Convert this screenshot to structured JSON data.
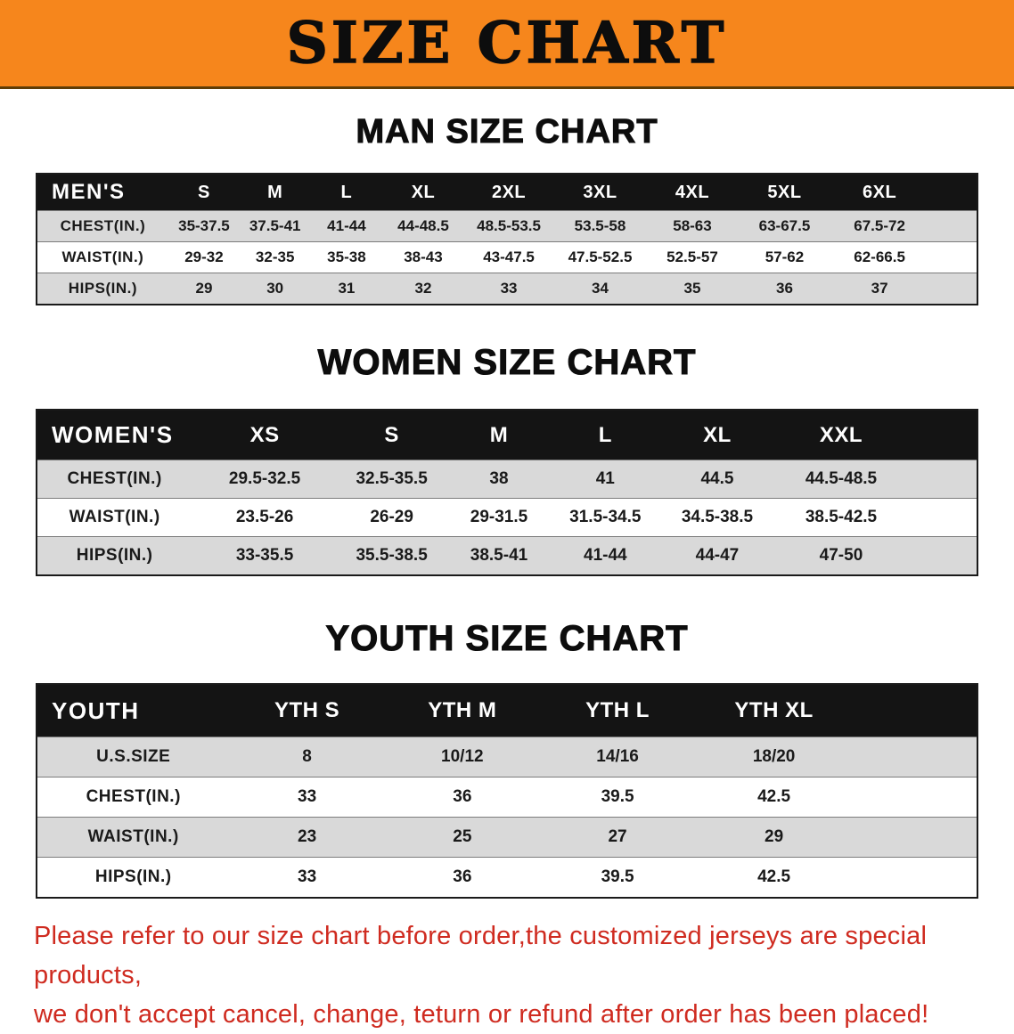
{
  "banner": {
    "title": "SIZE CHART"
  },
  "colors": {
    "banner_bg": "#F6861C",
    "header_bar_bg": "#141414",
    "row_gray": "#D9D9D9",
    "note_red": "#CF2B20"
  },
  "sections": [
    {
      "heading": "MAN SIZE CHART",
      "table": {
        "header": [
          "MEN'S",
          "S",
          "M",
          "L",
          "XL",
          "2XL",
          "3XL",
          "4XL",
          "5XL",
          "6XL"
        ],
        "rows": [
          [
            "CHEST(IN.)",
            "35-37.5",
            "37.5-41",
            "41-44",
            "44-48.5",
            "48.5-53.5",
            "53.5-58",
            "58-63",
            "63-67.5",
            "67.5-72"
          ],
          [
            "WAIST(IN.)",
            "29-32",
            "32-35",
            "35-38",
            "38-43",
            "43-47.5",
            "47.5-52.5",
            "52.5-57",
            "57-62",
            "62-66.5"
          ],
          [
            "HIPS(IN.)",
            "29",
            "30",
            "31",
            "32",
            "33",
            "34",
            "35",
            "36",
            "37"
          ]
        ]
      }
    },
    {
      "heading": "WOMEN SIZE CHART",
      "table": {
        "header": [
          "WOMEN'S",
          "XS",
          "S",
          "M",
          "L",
          "XL",
          "XXL"
        ],
        "rows": [
          [
            "CHEST(IN.)",
            "29.5-32.5",
            "32.5-35.5",
            "38",
            "41",
            "44.5",
            "44.5-48.5"
          ],
          [
            "WAIST(IN.)",
            "23.5-26",
            "26-29",
            "29-31.5",
            "31.5-34.5",
            "34.5-38.5",
            "38.5-42.5"
          ],
          [
            "HIPS(IN.)",
            "33-35.5",
            "35.5-38.5",
            "38.5-41",
            "41-44",
            "44-47",
            "47-50"
          ]
        ]
      }
    },
    {
      "heading": "YOUTH SIZE CHART",
      "table": {
        "header": [
          "YOUTH",
          "YTH S",
          "YTH M",
          "YTH L",
          "YTH XL"
        ],
        "rows": [
          [
            "U.S.SIZE",
            "8",
            "10/12",
            "14/16",
            "18/20"
          ],
          [
            "CHEST(IN.)",
            "33",
            "36",
            "39.5",
            "42.5"
          ],
          [
            "WAIST(IN.)",
            "23",
            "25",
            "27",
            "29"
          ],
          [
            "HIPS(IN.)",
            "33",
            "36",
            "39.5",
            "42.5"
          ]
        ]
      }
    }
  ],
  "note": {
    "line1": "Please refer to our size chart before order,the customized jerseys are special products,",
    "line2": "we don't accept cancel, change, teturn or refund after order has been placed!"
  }
}
